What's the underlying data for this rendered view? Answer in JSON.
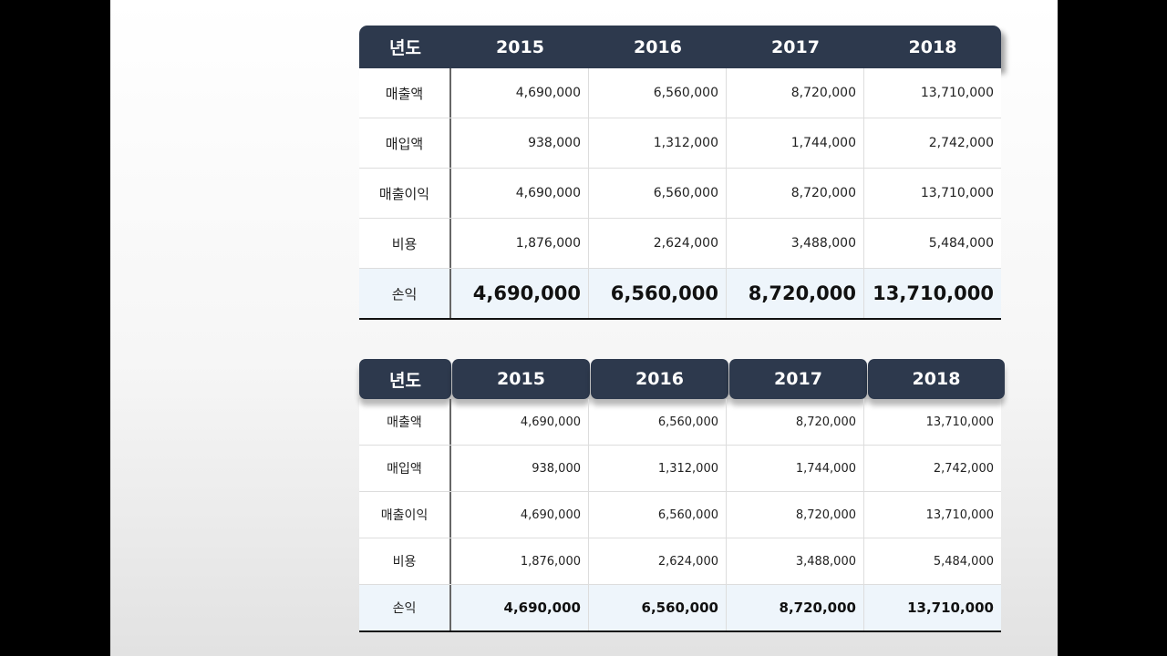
{
  "table1": {
    "header": [
      "년도",
      "2015",
      "2016",
      "2017",
      "2018"
    ],
    "rows": [
      {
        "label": "매출액",
        "values": [
          "4,690,000",
          "6,560,000",
          "8,720,000",
          "13,710,000"
        ]
      },
      {
        "label": "매입액",
        "values": [
          "938,000",
          "1,312,000",
          "1,744,000",
          "2,742,000"
        ]
      },
      {
        "label": "매출이익",
        "values": [
          "4,690,000",
          "6,560,000",
          "8,720,000",
          "13,710,000"
        ]
      },
      {
        "label": "비용",
        "values": [
          "1,876,000",
          "2,624,000",
          "3,488,000",
          "5,484,000"
        ]
      },
      {
        "label": "손익",
        "values": [
          "4,690,000",
          "6,560,000",
          "8,720,000",
          "13,710,000"
        ]
      }
    ]
  },
  "table2": {
    "header": [
      "년도",
      "2015",
      "2016",
      "2017",
      "2018"
    ],
    "rows": [
      {
        "label": "매출액",
        "values": [
          "4,690,000",
          "6,560,000",
          "8,720,000",
          "13,710,000"
        ]
      },
      {
        "label": "매입액",
        "values": [
          "938,000",
          "1,312,000",
          "1,744,000",
          "2,742,000"
        ]
      },
      {
        "label": "매출이익",
        "values": [
          "4,690,000",
          "6,560,000",
          "8,720,000",
          "13,710,000"
        ]
      },
      {
        "label": "비용",
        "values": [
          "1,876,000",
          "2,624,000",
          "3,488,000",
          "5,484,000"
        ]
      },
      {
        "label": "손익",
        "values": [
          "4,690,000",
          "6,560,000",
          "8,720,000",
          "13,710,000"
        ]
      }
    ]
  },
  "colors": {
    "header_bg": "#2d394d",
    "total_row_bg": "#eef5fb"
  }
}
